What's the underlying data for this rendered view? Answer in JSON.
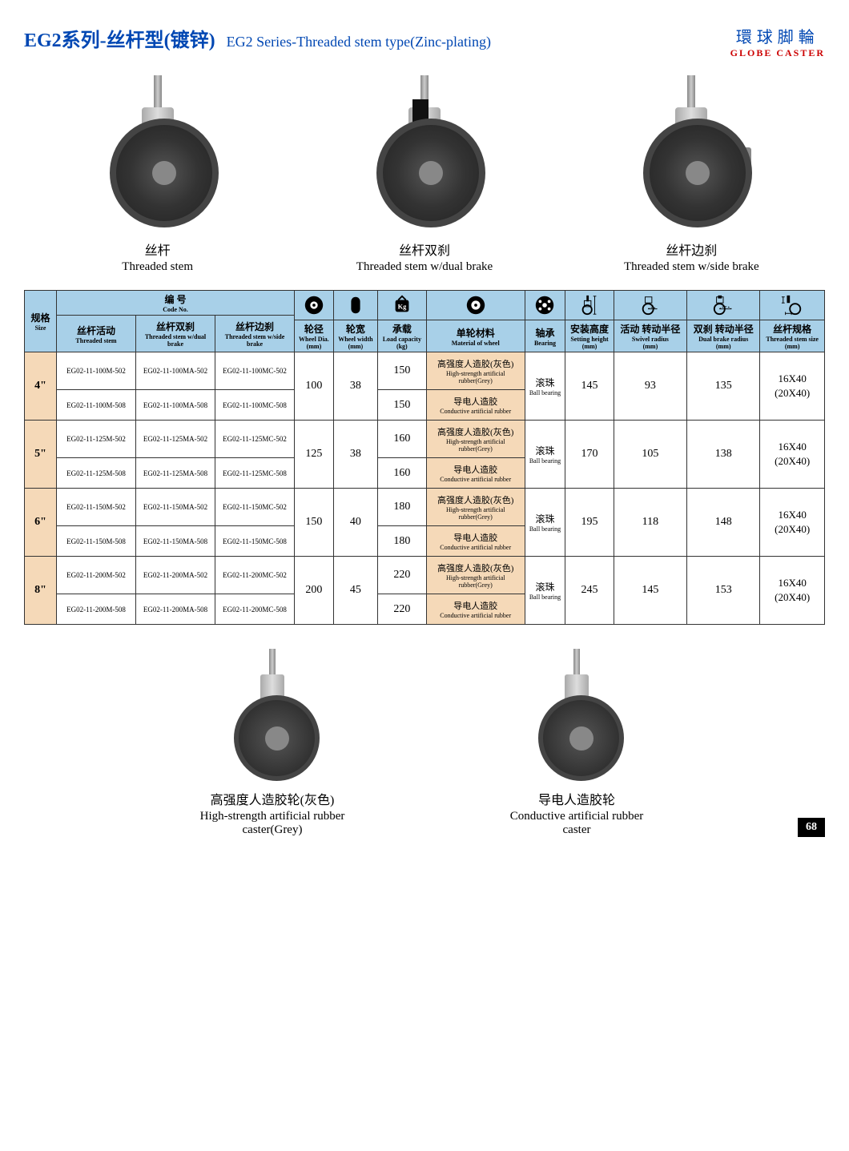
{
  "header": {
    "titleCn": "EG2系列-丝杆型(镀锌)",
    "titleEn": "EG2 Series-Threaded stem type(Zinc-plating)",
    "brandCn": "環球脚輪",
    "brandEn": "GLOBE  CASTER"
  },
  "topProducts": [
    {
      "cn": "丝杆",
      "en": "Threaded stem"
    },
    {
      "cn": "丝杆双刹",
      "en": "Threaded stem w/dual brake"
    },
    {
      "cn": "丝杆边刹",
      "en": "Threaded stem w/side brake"
    }
  ],
  "tableHeader": {
    "size": {
      "cn": "规格",
      "en": "Size"
    },
    "codeNo": {
      "cn": "编  号",
      "en": "Code No."
    },
    "cols": [
      {
        "cn": "丝杆活动",
        "en": "Threaded stem"
      },
      {
        "cn": "丝杆双刹",
        "en": "Threaded stem w/dual brake"
      },
      {
        "cn": "丝杆边刹",
        "en": "Threaded stem w/side brake"
      },
      {
        "cn": "轮径",
        "en": "Wheel Dia.",
        "unit": "(mm)"
      },
      {
        "cn": "轮宽",
        "en": "Wheel width",
        "unit": "(mm)"
      },
      {
        "cn": "承载",
        "en": "Load capacity",
        "unit": "(kg)"
      },
      {
        "cn": "单轮材料",
        "en": "Material of wheel"
      },
      {
        "cn": "轴承",
        "en": "Bearing"
      },
      {
        "cn": "安装高度",
        "en": "Setting height",
        "unit": "(mm)"
      },
      {
        "cn": "活动\n转动半径",
        "en": "Swivel radius",
        "unit": "(mm)"
      },
      {
        "cn": "双刹\n转动半径",
        "en": "Dual brake radius",
        "unit": "(mm)"
      },
      {
        "cn": "丝杆规格",
        "en": "Threaded stem size",
        "unit": "(mm)"
      }
    ]
  },
  "bearing": {
    "cn": "滚珠",
    "en": "Ball bearing"
  },
  "materials": {
    "grey": {
      "cn": "高强度人造胶(灰色)",
      "en": "High-strength artificial rubber(Grey)"
    },
    "cond": {
      "cn": "导电人造胶",
      "en": "Conductive artificial rubber"
    }
  },
  "stemSpec": {
    "l1": "16X40",
    "l2": "(20X40)"
  },
  "rows": [
    {
      "size": "4\"",
      "dia": "100",
      "width": "38",
      "height": "145",
      "swivel": "93",
      "dual": "135",
      "sub": [
        {
          "c1": "EG02-11-100M-502",
          "c2": "EG02-11-100MA-502",
          "c3": "EG02-11-100MC-502",
          "load": "150",
          "mat": "grey"
        },
        {
          "c1": "EG02-11-100M-508",
          "c2": "EG02-11-100MA-508",
          "c3": "EG02-11-100MC-508",
          "load": "150",
          "mat": "cond"
        }
      ]
    },
    {
      "size": "5\"",
      "dia": "125",
      "width": "38",
      "height": "170",
      "swivel": "105",
      "dual": "138",
      "sub": [
        {
          "c1": "EG02-11-125M-502",
          "c2": "EG02-11-125MA-502",
          "c3": "EG02-11-125MC-502",
          "load": "160",
          "mat": "grey"
        },
        {
          "c1": "EG02-11-125M-508",
          "c2": "EG02-11-125MA-508",
          "c3": "EG02-11-125MC-508",
          "load": "160",
          "mat": "cond"
        }
      ]
    },
    {
      "size": "6\"",
      "dia": "150",
      "width": "40",
      "height": "195",
      "swivel": "118",
      "dual": "148",
      "sub": [
        {
          "c1": "EG02-11-150M-502",
          "c2": "EG02-11-150MA-502",
          "c3": "EG02-11-150MC-502",
          "load": "180",
          "mat": "grey"
        },
        {
          "c1": "EG02-11-150M-508",
          "c2": "EG02-11-150MA-508",
          "c3": "EG02-11-150MC-508",
          "load": "180",
          "mat": "cond"
        }
      ]
    },
    {
      "size": "8\"",
      "dia": "200",
      "width": "45",
      "height": "245",
      "swivel": "145",
      "dual": "153",
      "sub": [
        {
          "c1": "EG02-11-200M-502",
          "c2": "EG02-11-200MA-502",
          "c3": "EG02-11-200MC-502",
          "load": "220",
          "mat": "grey"
        },
        {
          "c1": "EG02-11-200M-508",
          "c2": "EG02-11-200MA-508",
          "c3": "EG02-11-200MC-508",
          "load": "220",
          "mat": "cond"
        }
      ]
    }
  ],
  "bottomProducts": [
    {
      "cn": "高强度人造胶轮(灰色)",
      "en": "High-strength artificial rubber caster(Grey)"
    },
    {
      "cn": "导电人造胶轮",
      "en": "Conductive artificial rubber caster"
    }
  ],
  "pageNum": "68",
  "colors": {
    "headerBg": "#a8d0e8",
    "sizeBg": "#f5d9b8",
    "matBg": "#f5d9b8",
    "titleColor": "#0047b3",
    "brandRed": "#c00"
  }
}
